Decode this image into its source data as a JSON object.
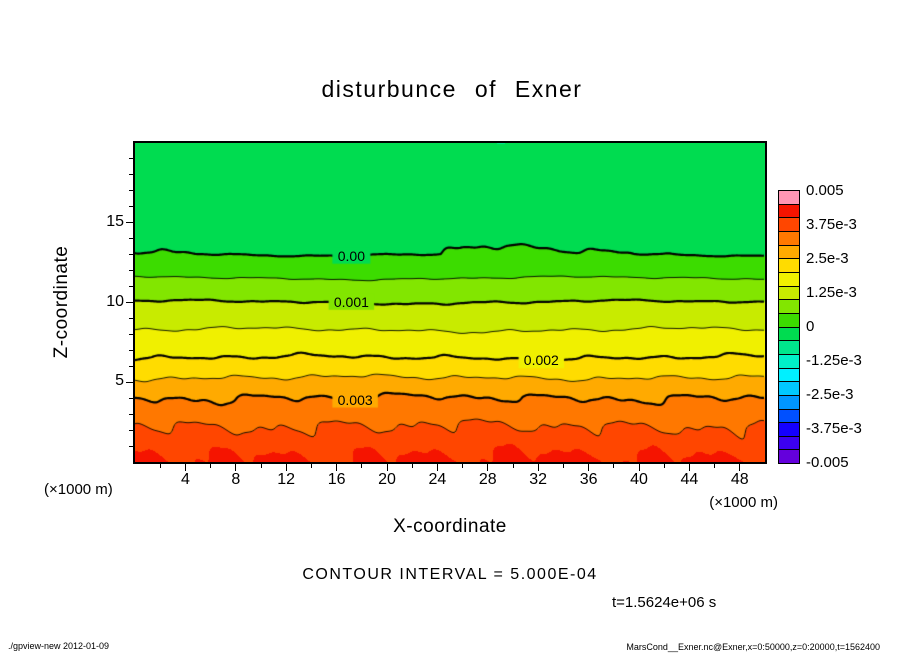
{
  "chart_data": {
    "type": "filled_contour",
    "title": "disturbunce of Exner",
    "xlabel": "X-coordinate",
    "ylabel": "Z-coordinate",
    "x_unit_label": "(×1000 m)",
    "y_unit_label": "(×1000 m)",
    "xlim": [
      0,
      50
    ],
    "ylim": [
      0,
      20
    ],
    "x_ticks": [
      4,
      8,
      12,
      16,
      20,
      24,
      28,
      32,
      36,
      40,
      44,
      48
    ],
    "x_minor_step": 2,
    "y_ticks": [
      5,
      10,
      15
    ],
    "y_minor_step": 1,
    "contour_interval": 0.0005,
    "contour_interval_text": "CONTOUR INTERVAL = 5.000E-04",
    "time_text": "t=1.5624e+06 s",
    "levels_thick": [
      0,
      0.001,
      0.002,
      0.003
    ],
    "levels_thin": [
      0.0005,
      0.0015,
      0.0025,
      0.0035
    ],
    "contour_labels": [
      {
        "text": "0.00",
        "level": 0,
        "x": 17.2,
        "z": 12.85
      },
      {
        "text": "0.001",
        "level": 0.001,
        "x": 17.2,
        "z": 9.95
      },
      {
        "text": "0.002",
        "level": 0.002,
        "x": 32.3,
        "z": 6.55
      },
      {
        "text": "0.003",
        "level": 0.003,
        "x": 17.5,
        "z": 3.8
      }
    ],
    "mean_profile": {
      "z": [
        0,
        4,
        6.5,
        10,
        13,
        20
      ],
      "value": [
        0.0041,
        0.003,
        0.002,
        0.001,
        0.0,
        -0.00046
      ]
    },
    "colorbar": {
      "min": -0.005,
      "max": 0.005,
      "tick_labels": [
        "0.005",
        "3.75e-3",
        "2.5e-3",
        "1.25e-3",
        "0",
        "-1.25e-3",
        "-2.5e-3",
        "-3.75e-3",
        "-0.005"
      ],
      "colors": [
        "#6400DC",
        "#3C00F0",
        "#1400FF",
        "#0050FF",
        "#0096FF",
        "#00C8FF",
        "#00F0FF",
        "#00F0C8",
        "#00E68C",
        "#00DC50",
        "#3CDC00",
        "#82E600",
        "#C8EB00",
        "#F0F000",
        "#FFDC00",
        "#FFAA00",
        "#FF7800",
        "#FF4600",
        "#F51400",
        "#FF96B4"
      ]
    }
  },
  "footer": {
    "left": "./gpview-new  2012-01-09",
    "right": "MarsCond__Exner.nc@Exner,x=0:50000,z=0:20000,t=1562400"
  }
}
